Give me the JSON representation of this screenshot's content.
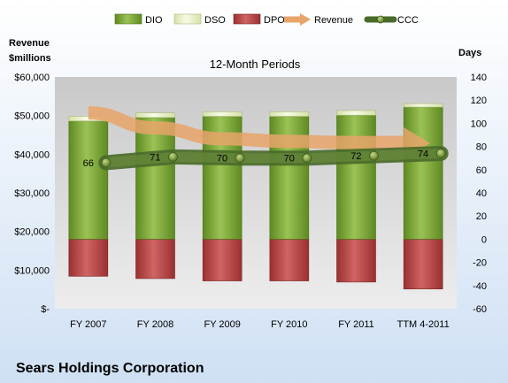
{
  "chart_data": {
    "type": "bar",
    "title": "12-Month Periods",
    "footer": "Sears Holdings Corporation",
    "left_axis_label_line1": "Revenue",
    "left_axis_label_line2": "$millions",
    "right_axis_label": "Days",
    "categories": [
      "FY 2007",
      "FY 2008",
      "FY 2009",
      "FY 2010",
      "FY 2011",
      "TTM 4-2011"
    ],
    "left_axis": {
      "min": 0,
      "max": 60000,
      "ticks": [
        0,
        10000,
        20000,
        30000,
        40000,
        50000,
        60000
      ],
      "tick_labels": [
        "$-",
        "$10,000",
        "$20,000",
        "$30,000",
        "$40,000",
        "$50,000",
        "$60,000"
      ]
    },
    "right_axis": {
      "min": -60,
      "max": 140,
      "ticks": [
        -60,
        -40,
        -20,
        0,
        20,
        40,
        60,
        80,
        100,
        120,
        140
      ],
      "tick_labels": [
        "-60",
        "-40",
        "-20",
        "0",
        "20",
        "40",
        "60",
        "80",
        "100",
        "120",
        "140"
      ]
    },
    "series": [
      {
        "name": "DIO",
        "axis": "right",
        "color": "#7DA63A",
        "values": [
          102,
          105,
          106,
          106,
          107,
          114
        ]
      },
      {
        "name": "DSO",
        "axis": "right",
        "color": "#E8F0C8",
        "values": [
          4,
          4,
          4,
          4,
          4,
          3
        ]
      },
      {
        "name": "DPO",
        "axis": "right",
        "color": "#B94A4A",
        "values": [
          -32,
          -34,
          -36,
          -36,
          -37,
          -43
        ]
      },
      {
        "name": "Revenue",
        "axis": "left",
        "color": "#E8A56A",
        "values": [
          50700,
          46800,
          44000,
          43300,
          43000,
          42600
        ]
      },
      {
        "name": "CCC",
        "axis": "right",
        "color": "#4A6B2A",
        "values": [
          66,
          71,
          70,
          70,
          72,
          74
        ]
      }
    ],
    "data_labels": [
      "66",
      "71",
      "70",
      "70",
      "72",
      "74"
    ],
    "legend_position": "top",
    "grid": false
  }
}
